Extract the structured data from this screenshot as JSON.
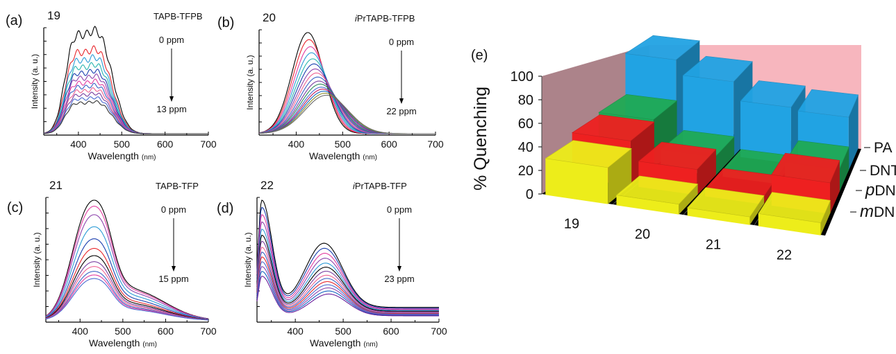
{
  "chart_data": [
    {
      "type": "line",
      "panel_label": "(a)",
      "sample_number": "19",
      "compound": "TAPB-TFPB",
      "xlabel": "Wavelength",
      "xunit": "(nm)",
      "ylabel": "Intensity (a. u.)",
      "xlim": [
        320,
        700
      ],
      "xticks": [
        "400",
        "500",
        "600",
        "700"
      ],
      "arrow_start": "0 ppm",
      "arrow_end": "13 ppm",
      "shape": "broad",
      "peak_wavelengths": [
        385,
        425,
        460
      ],
      "series_relative_intensity": [
        1.0,
        0.82,
        0.74,
        0.67,
        0.61,
        0.56,
        0.51,
        0.47,
        0.43,
        0.39,
        0.35,
        0.31
      ],
      "series_colors": [
        "#000000",
        "#e8262c",
        "#2b9bd6",
        "#2ab5b0",
        "#1b3faf",
        "#8e44ad",
        "#e33ca0",
        "#3b63c5",
        "#f06292",
        "#7a3fa0",
        "#4b6cd1",
        "#333333"
      ]
    },
    {
      "type": "line",
      "panel_label": "(b)",
      "sample_number": "20",
      "compound_prefix": "i",
      "compound": "PrTAPB-TFPB",
      "xlabel": "Wavelength",
      "xunit": "(nm)",
      "ylabel": "Intensity (a. u.)",
      "xlim": [
        320,
        700
      ],
      "xticks": [
        "400",
        "500",
        "600",
        "700"
      ],
      "arrow_start": "0 ppm",
      "arrow_end": "22 ppm",
      "shape": "single",
      "peak_wavelengths": [
        425,
        465
      ],
      "series_relative_intensity": [
        1.0,
        0.93,
        0.86,
        0.8,
        0.74,
        0.69,
        0.64,
        0.6,
        0.56,
        0.52,
        0.49,
        0.46,
        0.44,
        0.42,
        0.4,
        0.38
      ],
      "series_colors": [
        "#000000",
        "#e8262c",
        "#e33ca0",
        "#2b9bd6",
        "#2ab5b0",
        "#1b3faf",
        "#8e44ad",
        "#f06292",
        "#3b63c5",
        "#7a3fa0",
        "#2e8b57",
        "#4b6cd1",
        "#c2185b",
        "#1565c0",
        "#8a8a2a",
        "#6a6a6a"
      ]
    },
    {
      "type": "line",
      "panel_label": "(c)",
      "sample_number": "21",
      "compound": "TAPB-TFP",
      "xlabel": "Wavelength",
      "xunit": "(nm)",
      "ylabel": "Intensity (a. u.)",
      "xlim": [
        320,
        700
      ],
      "xticks": [
        "400",
        "500",
        "600",
        "700"
      ],
      "arrow_start": "0 ppm",
      "arrow_end": "15 ppm",
      "shape": "tail",
      "peak_wavelengths": [
        420,
        460
      ],
      "series_relative_intensity": [
        1.0,
        0.95,
        0.88,
        0.78,
        0.68,
        0.6,
        0.54,
        0.49,
        0.45,
        0.41,
        0.38,
        0.35
      ],
      "series_colors": [
        "#000000",
        "#e33ca0",
        "#8e44ad",
        "#2b9bd6",
        "#1b3faf",
        "#e8262c",
        "#000000",
        "#7a3fa0",
        "#f06292",
        "#3b63c5",
        "#e33ca0",
        "#4b6cd1"
      ]
    },
    {
      "type": "line",
      "panel_label": "(d)",
      "sample_number": "22",
      "compound_prefix": "i",
      "compound": "PrTAPB-TFP",
      "xlabel": "Wavelength",
      "xunit": "(nm)",
      "ylabel": "Intensity (a. u.)",
      "xlim": [
        320,
        700
      ],
      "xticks": [
        "400",
        "500",
        "600",
        "700"
      ],
      "arrow_start": "0 ppm",
      "arrow_end": "23 ppm",
      "shape": "double",
      "peak_wavelengths": [
        330,
        460
      ],
      "series_relative_intensity": [
        1.0,
        0.94,
        0.88,
        0.82,
        0.76,
        0.71,
        0.66,
        0.61,
        0.57,
        0.53,
        0.49,
        0.45,
        0.41,
        0.37
      ],
      "series_colors": [
        "#000000",
        "#1b3faf",
        "#e33ca0",
        "#8e44ad",
        "#2b9bd6",
        "#000000",
        "#7a3fa0",
        "#f06292",
        "#3b63c5",
        "#e8262c",
        "#4b6cd1",
        "#8e44ad",
        "#1565c0",
        "#6a1b9a"
      ]
    },
    {
      "type": "bar3d",
      "panel_label": "(e)",
      "ylabel": "% Quenching",
      "ylim": [
        0,
        100
      ],
      "yticks": [
        "0",
        "20",
        "40",
        "60",
        "80",
        "100"
      ],
      "categories": [
        "19",
        "20",
        "21",
        "22"
      ],
      "series": [
        {
          "name": "PA",
          "color": "#21a3e3",
          "values": [
            97,
            81,
            61,
            58
          ]
        },
        {
          "name": "DNT",
          "color": "#1faa55",
          "values": [
            48,
            19,
            7,
            23
          ]
        },
        {
          "name": "DNB",
          "name_prefix": "p",
          "color": "#ee2020",
          "values": [
            42,
            24,
            7,
            29
          ]
        },
        {
          "name": "DNB",
          "name_prefix": "m",
          "color": "#eded1a",
          "values": [
            32,
            9,
            7,
            11
          ]
        }
      ]
    }
  ]
}
